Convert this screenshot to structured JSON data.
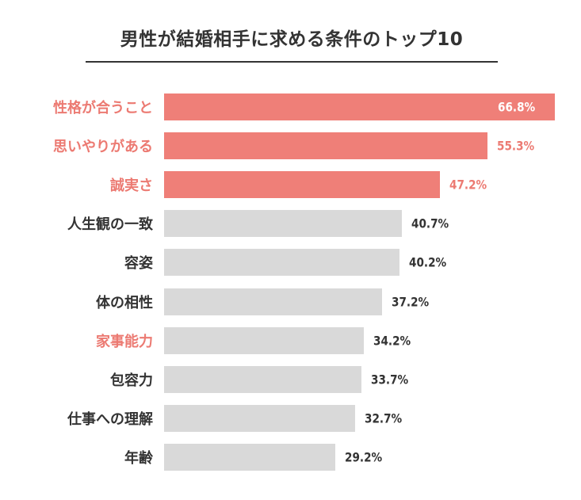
{
  "chart_data": {
    "type": "bar",
    "orientation": "horizontal",
    "title": "男性が結婚相手に求める条件のトップ10",
    "categories": [
      "性格が合うこと",
      "思いやりがある",
      "誠実さ",
      "人生観の一致",
      "容姿",
      "体の相性",
      "家事能力",
      "包容力",
      "仕事への理解",
      "年齢"
    ],
    "values": [
      66.8,
      55.3,
      47.2,
      40.7,
      40.2,
      37.2,
      34.2,
      33.7,
      32.7,
      29.2
    ],
    "value_labels": [
      "66.8%",
      "55.3%",
      "47.2%",
      "40.7%",
      "40.2%",
      "37.2%",
      "34.2%",
      "33.7%",
      "32.7%",
      "29.2%"
    ],
    "highlight_bars": [
      true,
      true,
      true,
      false,
      false,
      false,
      false,
      false,
      false,
      false
    ],
    "highlight_labels": [
      true,
      true,
      true,
      false,
      false,
      false,
      true,
      false,
      false,
      false
    ],
    "xlim": [
      0,
      66.8
    ],
    "xlabel": "",
    "ylabel": "",
    "grid": false
  },
  "colors": {
    "accent": "#ef7f78",
    "accent_text": "#ec7a72",
    "bar_gray": "#d9d9d9",
    "text": "#333333"
  }
}
